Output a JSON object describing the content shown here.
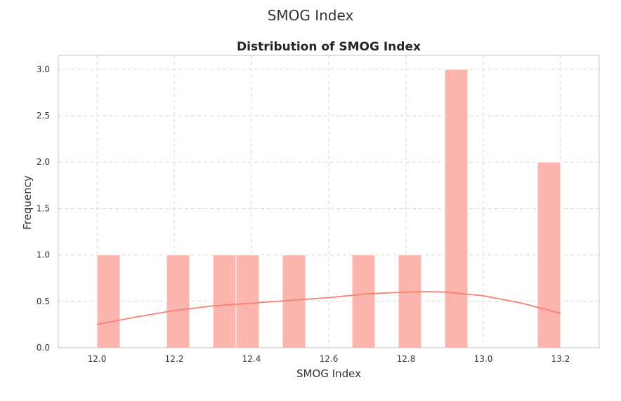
{
  "page": {
    "title": "SMOG Index"
  },
  "chart_data": {
    "type": "bar",
    "title": "Distribution of SMOG Index",
    "xlabel": "SMOG Index",
    "ylabel": "Frequency",
    "xlim": [
      11.9,
      13.3
    ],
    "ylim": [
      0,
      3.15
    ],
    "xticks": [
      "12.0",
      "12.2",
      "12.4",
      "12.6",
      "12.8",
      "13.0",
      "13.2"
    ],
    "xtick_values": [
      12.0,
      12.2,
      12.4,
      12.6,
      12.8,
      13.0,
      13.2
    ],
    "yticks": [
      "0.0",
      "0.5",
      "1.0",
      "1.5",
      "2.0",
      "2.5",
      "3.0"
    ],
    "ytick_values": [
      0.0,
      0.5,
      1.0,
      1.5,
      2.0,
      2.5,
      3.0
    ],
    "grid": true,
    "bins": [
      {
        "x0": 12.0,
        "x1": 12.06,
        "count": 1
      },
      {
        "x0": 12.06,
        "x1": 12.12,
        "count": 0
      },
      {
        "x0": 12.12,
        "x1": 12.18,
        "count": 0
      },
      {
        "x0": 12.18,
        "x1": 12.24,
        "count": 1
      },
      {
        "x0": 12.24,
        "x1": 12.3,
        "count": 0
      },
      {
        "x0": 12.3,
        "x1": 12.36,
        "count": 1
      },
      {
        "x0": 12.36,
        "x1": 12.42,
        "count": 1
      },
      {
        "x0": 12.42,
        "x1": 12.48,
        "count": 0
      },
      {
        "x0": 12.48,
        "x1": 12.54,
        "count": 1
      },
      {
        "x0": 12.54,
        "x1": 12.6,
        "count": 0
      },
      {
        "x0": 12.6,
        "x1": 12.66,
        "count": 0
      },
      {
        "x0": 12.66,
        "x1": 12.72,
        "count": 1
      },
      {
        "x0": 12.72,
        "x1": 12.78,
        "count": 0
      },
      {
        "x0": 12.78,
        "x1": 12.84,
        "count": 1
      },
      {
        "x0": 12.84,
        "x1": 12.9,
        "count": 0
      },
      {
        "x0": 12.9,
        "x1": 12.96,
        "count": 3
      },
      {
        "x0": 12.96,
        "x1": 13.02,
        "count": 0
      },
      {
        "x0": 13.02,
        "x1": 13.08,
        "count": 0
      },
      {
        "x0": 13.08,
        "x1": 13.14,
        "count": 0
      },
      {
        "x0": 13.14,
        "x1": 13.2,
        "count": 2
      }
    ],
    "kde": {
      "x": [
        12.0,
        12.1,
        12.2,
        12.3,
        12.4,
        12.5,
        12.6,
        12.7,
        12.8,
        12.85,
        12.9,
        13.0,
        13.1,
        13.2
      ],
      "y": [
        0.25,
        0.33,
        0.4,
        0.45,
        0.48,
        0.51,
        0.54,
        0.58,
        0.6,
        0.605,
        0.6,
        0.56,
        0.48,
        0.37
      ]
    },
    "colors": {
      "bar": "#fbb4ae",
      "kde": "#fa8072",
      "grid": "#d9d9d9",
      "frame": "#cccccc"
    }
  }
}
